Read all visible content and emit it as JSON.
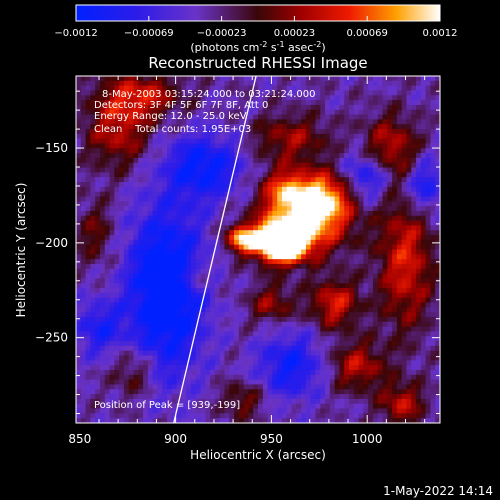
{
  "chart_data": {
    "type": "heatmap",
    "title": "Reconstructed RHESSI Image",
    "xlabel": "Heliocentric X (arcsec)",
    "ylabel": "Heliocentric Y (arcsec)",
    "xlim": [
      848,
      1038
    ],
    "ylim": [
      -295,
      -112
    ],
    "x_ticks": [
      850,
      900,
      950,
      1000
    ],
    "y_ticks": [
      -150,
      -200,
      -250
    ],
    "colorbar": {
      "range": [
        -0.0012,
        0.0012
      ],
      "ticks": [
        "-0.0012",
        "-0.00069",
        "-0.00023",
        "0.00023",
        "0.00069",
        "0.0012"
      ],
      "unit_prefix": "(photons cm",
      "unit_exp1": "-2",
      "unit_mid": " s",
      "unit_exp2": "-1",
      "unit_mid2": " asec",
      "unit_exp3": "-2",
      "unit_suffix": ")"
    },
    "annotations": [
      "8-May-2003 03:15:24.000 to 03:21:24.000",
      "Detectors: 3F 4F 5F 6F 7F 8F, Att 0",
      "Energy Range: 12.0 - 25.0 keV",
      "Clean    Total counts: 1.95E+03"
    ],
    "peak_label": "Position of Peak = [939,-199]",
    "peak": [
      939,
      -199
    ],
    "limb_line": [
      [
        899,
        -295
      ],
      [
        942,
        -112
      ]
    ],
    "sources": [
      {
        "x": 955,
        "y": -200,
        "sx": 9,
        "sy": 7,
        "amp": 1.0
      },
      {
        "x": 935,
        "y": -198,
        "sx": 6,
        "sy": 5,
        "amp": 0.55
      },
      {
        "x": 968,
        "y": -188,
        "sx": 16,
        "sy": 12,
        "amp": 0.55
      },
      {
        "x": 978,
        "y": -175,
        "sx": 10,
        "sy": 9,
        "amp": 0.4
      },
      {
        "x": 958,
        "y": -172,
        "sx": 9,
        "sy": 8,
        "amp": 0.35
      },
      {
        "x": 983,
        "y": -232,
        "sx": 9,
        "sy": 9,
        "amp": 0.35
      },
      {
        "x": 950,
        "y": -232,
        "sx": 8,
        "sy": 7,
        "amp": 0.25
      },
      {
        "x": 912,
        "y": -218,
        "sx": 6,
        "sy": 5,
        "amp": 0.2
      },
      {
        "x": 1020,
        "y": -210,
        "sx": 10,
        "sy": 25,
        "amp": 0.35
      },
      {
        "x": 1012,
        "y": -150,
        "sx": 10,
        "sy": 12,
        "amp": 0.3
      },
      {
        "x": 870,
        "y": -140,
        "sx": 12,
        "sy": 14,
        "amp": 0.3
      },
      {
        "x": 883,
        "y": -122,
        "sx": 14,
        "sy": 8,
        "amp": 0.3
      },
      {
        "x": 960,
        "y": -145,
        "sx": 14,
        "sy": 9,
        "amp": 0.25
      },
      {
        "x": 995,
        "y": -265,
        "sx": 10,
        "sy": 9,
        "amp": 0.3
      },
      {
        "x": 1018,
        "y": -285,
        "sx": 8,
        "sy": 8,
        "amp": 0.3
      },
      {
        "x": 935,
        "y": -283,
        "sx": 8,
        "sy": 7,
        "amp": 0.2
      },
      {
        "x": 878,
        "y": -268,
        "sx": 8,
        "sy": 10,
        "amp": 0.2
      },
      {
        "x": 858,
        "y": -195,
        "sx": 7,
        "sy": 12,
        "amp": 0.18
      }
    ],
    "troughs": [
      {
        "x": 895,
        "y": -225,
        "sx": 14,
        "sy": 30,
        "amp": 0.5
      },
      {
        "x": 915,
        "y": -160,
        "sx": 14,
        "sy": 12,
        "amp": 0.35
      },
      {
        "x": 1000,
        "y": -165,
        "sx": 9,
        "sy": 9,
        "amp": 0.3
      },
      {
        "x": 960,
        "y": -265,
        "sx": 12,
        "sy": 12,
        "amp": 0.3
      },
      {
        "x": 1030,
        "y": -170,
        "sx": 7,
        "sy": 10,
        "amp": 0.3
      },
      {
        "x": 860,
        "y": -245,
        "sx": 9,
        "sy": 10,
        "amp": 0.25
      }
    ]
  },
  "footer": {
    "timestamp": "1-May-2022 14:14"
  }
}
